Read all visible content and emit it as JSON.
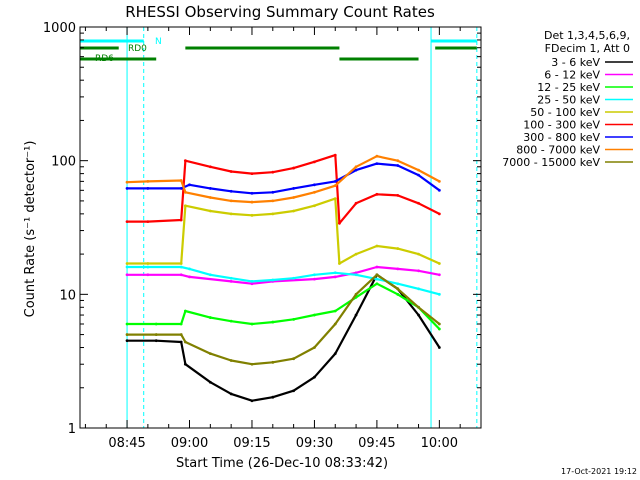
{
  "chart_data": {
    "type": "line",
    "title": "RHESSI Observing Summary Count Rates",
    "xlabel": "Start Time (26-Dec-10 08:33:42)",
    "ylabel": "Count Rate (s⁻¹ detector⁻¹)",
    "yscale": "log",
    "ylim": [
      1,
      1000
    ],
    "y_ticks": [
      1,
      10,
      100,
      1000
    ],
    "x_range_minutes": [
      "08:33:42",
      "10:10"
    ],
    "x_ticks": [
      "08:45",
      "09:00",
      "09:15",
      "09:30",
      "09:45",
      "10:00"
    ],
    "legend_header": [
      "Det 1,3,4,5,6,9,",
      "FDecim 1, Att 0"
    ],
    "legend_position": "right",
    "footer_date": "17-Oct-2021 19:12",
    "flags": [
      {
        "label": "N",
        "color": "#00ffff",
        "segments": [
          [
            "08:33:42",
            "08:49"
          ],
          [
            "09:58",
            "10:09"
          ]
        ]
      },
      {
        "label": "RD0",
        "color": "#008000",
        "segments": [
          [
            "08:33:42",
            "08:43"
          ],
          [
            "08:59",
            "09:36"
          ],
          [
            "09:59",
            "10:09"
          ]
        ]
      },
      {
        "label": "RD6",
        "color": "#008000",
        "segments": [
          [
            "08:33:42",
            "08:52"
          ],
          [
            "09:36",
            "09:55"
          ]
        ]
      }
    ],
    "vlines_solid": [
      "08:45",
      "09:58"
    ],
    "vlines_dashed": [
      "08:49",
      "10:09"
    ],
    "series": [
      {
        "name": "3 - 6 keV",
        "color": "#000000",
        "points": [
          [
            "08:45",
            4.5
          ],
          [
            "08:52",
            4.5
          ],
          [
            "08:58",
            4.4
          ],
          [
            "08:59",
            3.0
          ],
          [
            "09:05",
            2.2
          ],
          [
            "09:10",
            1.8
          ],
          [
            "09:15",
            1.6
          ],
          [
            "09:20",
            1.7
          ],
          [
            "09:25",
            1.9
          ],
          [
            "09:30",
            2.4
          ],
          [
            "09:35",
            3.6
          ],
          [
            "09:40",
            7
          ],
          [
            "09:45",
            14
          ],
          [
            "09:50",
            11
          ],
          [
            "09:55",
            7
          ],
          [
            "10:00",
            4
          ]
        ]
      },
      {
        "name": "6 - 12 keV",
        "color": "#ff00ff",
        "points": [
          [
            "08:45",
            14
          ],
          [
            "08:50",
            14
          ],
          [
            "08:58",
            14
          ],
          [
            "09:00",
            13.5
          ],
          [
            "09:10",
            12.5
          ],
          [
            "09:15",
            12
          ],
          [
            "09:20",
            12.5
          ],
          [
            "09:30",
            13
          ],
          [
            "09:35",
            13.5
          ],
          [
            "09:40",
            14.5
          ],
          [
            "09:45",
            16
          ],
          [
            "09:50",
            15.5
          ],
          [
            "09:55",
            15
          ],
          [
            "10:00",
            14
          ]
        ]
      },
      {
        "name": "12 - 25 keV",
        "color": "#00ff00",
        "points": [
          [
            "08:45",
            6
          ],
          [
            "08:52",
            6
          ],
          [
            "08:58",
            6
          ],
          [
            "08:59",
            7.5
          ],
          [
            "09:05",
            6.7
          ],
          [
            "09:10",
            6.3
          ],
          [
            "09:15",
            6
          ],
          [
            "09:20",
            6.2
          ],
          [
            "09:25",
            6.5
          ],
          [
            "09:30",
            7
          ],
          [
            "09:35",
            7.5
          ],
          [
            "09:40",
            9.5
          ],
          [
            "09:45",
            12
          ],
          [
            "09:50",
            10
          ],
          [
            "09:55",
            8
          ],
          [
            "10:00",
            5.5
          ]
        ]
      },
      {
        "name": "25 - 50 keV",
        "color": "#00ffff",
        "points": [
          [
            "08:45",
            16
          ],
          [
            "08:50",
            16
          ],
          [
            "08:58",
            16
          ],
          [
            "09:00",
            15.5
          ],
          [
            "09:05",
            14
          ],
          [
            "09:10",
            13.2
          ],
          [
            "09:15",
            12.5
          ],
          [
            "09:20",
            12.8
          ],
          [
            "09:25",
            13.2
          ],
          [
            "09:30",
            14
          ],
          [
            "09:35",
            14.5
          ],
          [
            "09:40",
            14
          ],
          [
            "09:45",
            13
          ],
          [
            "09:50",
            12
          ],
          [
            "09:55",
            11
          ],
          [
            "10:00",
            10
          ]
        ]
      },
      {
        "name": "50 - 100 keV",
        "color": "#cccc00",
        "points": [
          [
            "08:45",
            17
          ],
          [
            "08:50",
            17
          ],
          [
            "08:58",
            17
          ],
          [
            "08:59",
            46
          ],
          [
            "09:05",
            42
          ],
          [
            "09:10",
            40
          ],
          [
            "09:15",
            39
          ],
          [
            "09:20",
            40
          ],
          [
            "09:25",
            42
          ],
          [
            "09:30",
            46
          ],
          [
            "09:35",
            52
          ],
          [
            "09:36",
            17
          ],
          [
            "09:40",
            20
          ],
          [
            "09:45",
            23
          ],
          [
            "09:50",
            22
          ],
          [
            "09:55",
            20
          ],
          [
            "10:00",
            17
          ]
        ]
      },
      {
        "name": "100 - 300 keV",
        "color": "#ff0000",
        "points": [
          [
            "08:45",
            35
          ],
          [
            "08:50",
            35
          ],
          [
            "08:58",
            36
          ],
          [
            "08:59",
            100
          ],
          [
            "09:05",
            90
          ],
          [
            "09:10",
            83
          ],
          [
            "09:15",
            80
          ],
          [
            "09:20",
            82
          ],
          [
            "09:25",
            88
          ],
          [
            "09:30",
            98
          ],
          [
            "09:35",
            110
          ],
          [
            "09:36",
            34
          ],
          [
            "09:40",
            48
          ],
          [
            "09:45",
            56
          ],
          [
            "09:50",
            55
          ],
          [
            "09:55",
            48
          ],
          [
            "10:00",
            40
          ]
        ]
      },
      {
        "name": "300 - 800 keV",
        "color": "#0000ff",
        "points": [
          [
            "08:45",
            62
          ],
          [
            "08:50",
            62
          ],
          [
            "08:58",
            62
          ],
          [
            "09:00",
            66
          ],
          [
            "09:05",
            62
          ],
          [
            "09:10",
            59
          ],
          [
            "09:15",
            57
          ],
          [
            "09:20",
            58
          ],
          [
            "09:25",
            62
          ],
          [
            "09:30",
            66
          ],
          [
            "09:35",
            70
          ],
          [
            "09:40",
            85
          ],
          [
            "09:45",
            95
          ],
          [
            "09:50",
            92
          ],
          [
            "09:55",
            78
          ],
          [
            "10:00",
            60
          ]
        ]
      },
      {
        "name": "800 - 7000 keV",
        "color": "#ff8000",
        "points": [
          [
            "08:45",
            69
          ],
          [
            "08:50",
            70
          ],
          [
            "08:58",
            71
          ],
          [
            "08:59",
            58
          ],
          [
            "09:05",
            53
          ],
          [
            "09:10",
            50
          ],
          [
            "09:15",
            49
          ],
          [
            "09:20",
            50
          ],
          [
            "09:25",
            53
          ],
          [
            "09:30",
            58
          ],
          [
            "09:35",
            65
          ],
          [
            "09:40",
            90
          ],
          [
            "09:45",
            108
          ],
          [
            "09:50",
            100
          ],
          [
            "09:55",
            85
          ],
          [
            "10:00",
            70
          ]
        ]
      },
      {
        "name": "7000 - 15000 keV",
        "color": "#808000",
        "points": [
          [
            "08:45",
            5
          ],
          [
            "08:52",
            5
          ],
          [
            "08:58",
            5
          ],
          [
            "08:59",
            4.4
          ],
          [
            "09:05",
            3.6
          ],
          [
            "09:10",
            3.2
          ],
          [
            "09:15",
            3.0
          ],
          [
            "09:20",
            3.1
          ],
          [
            "09:25",
            3.3
          ],
          [
            "09:30",
            4
          ],
          [
            "09:35",
            6
          ],
          [
            "09:40",
            10
          ],
          [
            "09:45",
            14
          ],
          [
            "09:50",
            11
          ],
          [
            "09:55",
            8
          ],
          [
            "10:00",
            6
          ]
        ]
      }
    ]
  }
}
